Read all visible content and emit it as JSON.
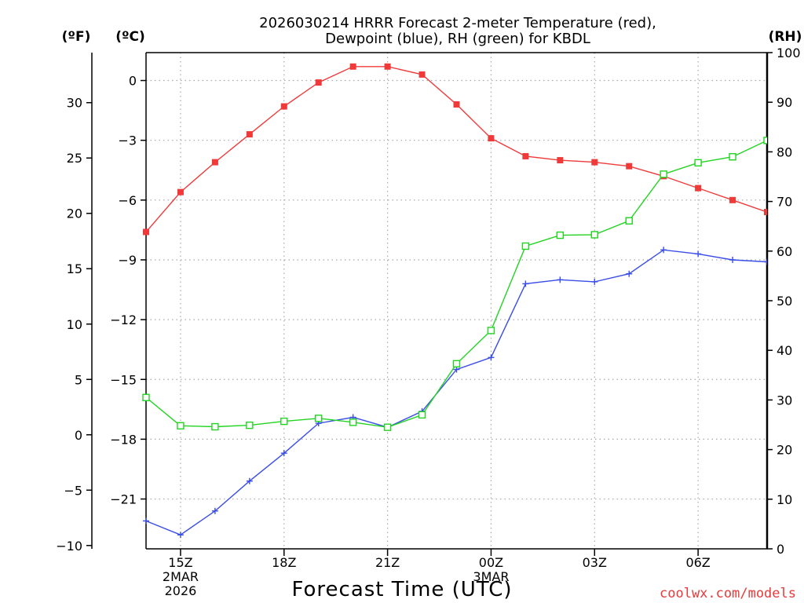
{
  "chart_data": {
    "type": "line",
    "title_lines": [
      "2026030214 HRRR Forecast 2-meter Temperature (red),",
      "Dewpoint (blue), RH (green) for KBDL"
    ],
    "xlabel": "Forecast Time (UTC)",
    "unit_labels": {
      "fahrenheit": "(ºF)",
      "celsius": "(ºC)",
      "rh": "(RH)"
    },
    "watermark": "coolwx.com/models",
    "colors": {
      "temperature": "#f03a3a",
      "dewpoint": "#3a4de8",
      "rh": "#22d422",
      "grid": "#a8a8a8",
      "watermark": "#e83a3a"
    },
    "x": [
      14,
      15,
      16,
      17,
      18,
      19,
      20,
      21,
      22,
      23,
      24,
      25,
      26,
      27,
      28,
      29,
      30,
      31,
      32
    ],
    "xlim": [
      14,
      32
    ],
    "celsius_axis": {
      "ylim": [
        -23.5,
        1.4
      ],
      "ticks": [
        0,
        -3,
        -6,
        -9,
        -12,
        -15,
        -18,
        -21
      ],
      "tick_labels": [
        "0",
        "−3",
        "−6",
        "−9",
        "−12",
        "−15",
        "−18",
        "−21"
      ]
    },
    "fahrenheit_axis": {
      "ticks": [
        30,
        25,
        20,
        15,
        10,
        5,
        0,
        -5,
        -10
      ],
      "tick_labels": [
        "30",
        "25",
        "20",
        "15",
        "10",
        "5",
        "0",
        "−5",
        "−10"
      ]
    },
    "rh_axis": {
      "ylim": [
        0,
        100
      ],
      "ticks": [
        0,
        10,
        20,
        30,
        40,
        50,
        60,
        70,
        80,
        90,
        100
      ],
      "tick_labels": [
        "0",
        "10",
        "20",
        "30",
        "40",
        "50",
        "60",
        "70",
        "80",
        "90",
        "100"
      ]
    },
    "x_ticks": [
      {
        "x": 15,
        "lines": [
          "15Z",
          "2MAR",
          "2026"
        ]
      },
      {
        "x": 18,
        "lines": [
          "18Z"
        ]
      },
      {
        "x": 21,
        "lines": [
          "21Z"
        ]
      },
      {
        "x": 24,
        "lines": [
          "00Z",
          "3MAR"
        ]
      },
      {
        "x": 27,
        "lines": [
          "03Z"
        ]
      },
      {
        "x": 30,
        "lines": [
          "06Z"
        ]
      }
    ],
    "series": [
      {
        "name": "Temperature",
        "axis": "celsius",
        "marker": "square-filled",
        "color_key": "temperature",
        "values": [
          -7.6,
          -5.6,
          -4.1,
          -2.7,
          -1.3,
          -0.1,
          0.7,
          0.7,
          0.3,
          -1.2,
          -2.9,
          -3.8,
          -4.0,
          -4.1,
          -4.3,
          -4.8,
          -5.4,
          -6.0,
          -6.6
        ]
      },
      {
        "name": "Dewpoint",
        "axis": "celsius",
        "marker": "plus",
        "color_key": "dewpoint",
        "values": [
          -22.1,
          -22.8,
          -21.6,
          -20.1,
          -18.7,
          -17.2,
          -16.9,
          -17.4,
          -16.6,
          -14.5,
          -13.9,
          -10.2,
          -10.0,
          -10.1,
          -9.7,
          -8.5,
          -8.7,
          -9.0,
          -9.1
        ]
      },
      {
        "name": "RH",
        "axis": "rh",
        "marker": "square-open",
        "color_key": "rh",
        "values": [
          30.5,
          24.8,
          24.6,
          24.9,
          25.7,
          26.3,
          25.5,
          24.5,
          27.0,
          37.3,
          44.0,
          61.0,
          63.2,
          63.3,
          66.1,
          75.5,
          77.8,
          79.0,
          82.3
        ]
      }
    ]
  }
}
